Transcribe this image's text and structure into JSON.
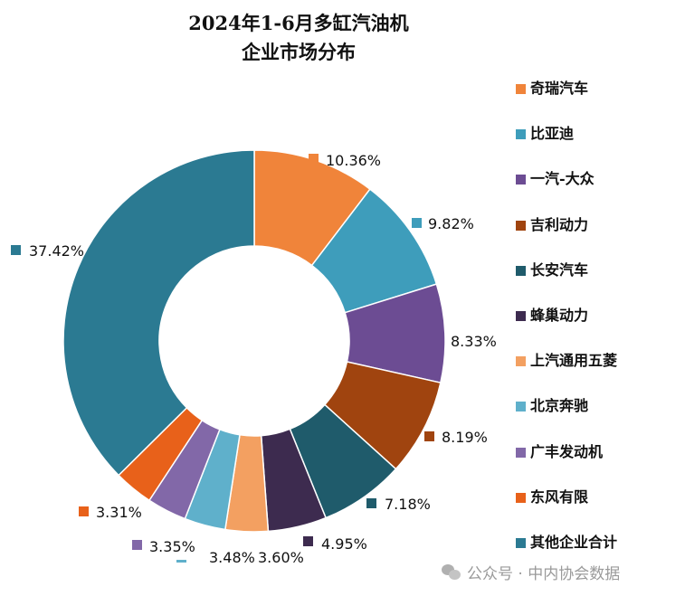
{
  "chart_data": {
    "type": "pie",
    "variant": "donut",
    "title": "2024年1-6月多缸汽油机\n企业市场分布",
    "title_lines": [
      "2024年1-6月多缸汽油机",
      "企业市场分布"
    ],
    "legend_position": "right",
    "categories": [
      "奇瑞汽车",
      "比亚迪",
      "一汽-大众",
      "吉利动力",
      "长安汽车",
      "蜂巢动力",
      "上汽通用五菱",
      "北京奔驰",
      "广丰发动机",
      "东风有限",
      "其他企业合计"
    ],
    "values": [
      10.36,
      9.82,
      8.33,
      8.19,
      7.18,
      4.95,
      3.6,
      3.48,
      3.35,
      3.31,
      37.42
    ],
    "data_labels": [
      "10.36%",
      "9.82%",
      "8.33%",
      "8.19%",
      "7.18%",
      "4.95%",
      "3.60%",
      "3.48%",
      "3.35%",
      "3.31%",
      "37.42%"
    ],
    "colors": [
      "#F0843A",
      "#3E9DBB",
      "#6C4C93",
      "#A0440F",
      "#1F5B6B",
      "#3D2B4F",
      "#F3A061",
      "#5FB0CB",
      "#8268A8",
      "#E8611A",
      "#2B7A92"
    ]
  },
  "watermark": "公众号 · 中内协会数据"
}
